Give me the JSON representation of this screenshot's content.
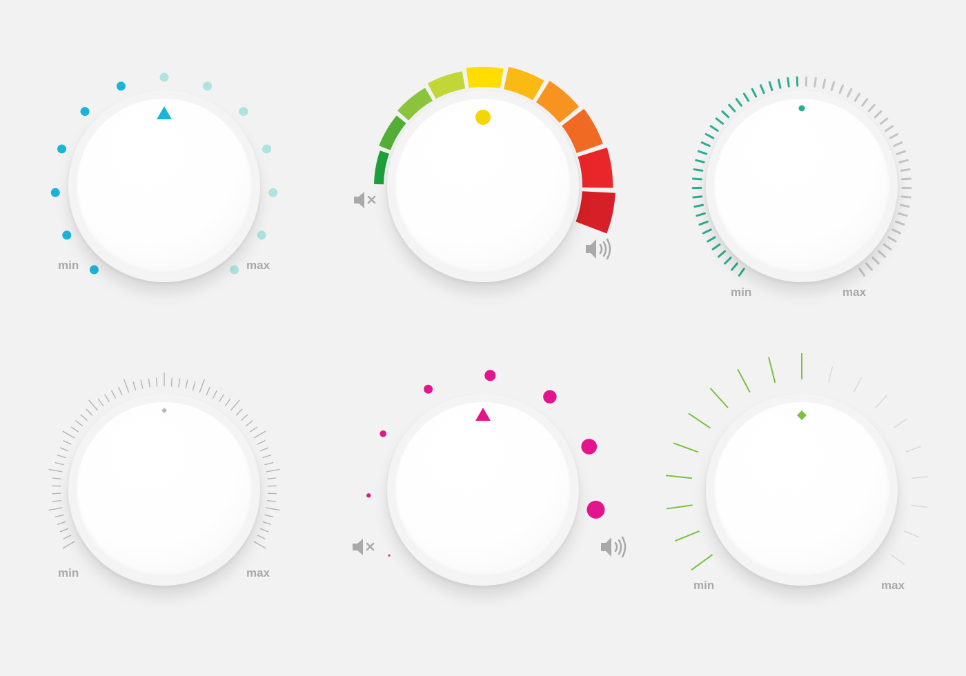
{
  "labels": {
    "min": "min",
    "max": "max"
  },
  "colors": {
    "background": "#f2f2f2",
    "cyan": "#19b5d8",
    "cyan_inactive": "#aee3e0",
    "teal": "#2aae90",
    "pink": "#e4158c",
    "green": "#79c13e",
    "gray_ticks": "#c4c4c4",
    "label": "#a9a9a9",
    "yellow_dot": "#f6d600",
    "segments": [
      "#1ea03a",
      "#53ae36",
      "#8ac33c",
      "#c2d638",
      "#ffdd00",
      "#fbb913",
      "#f7931e",
      "#f06a23",
      "#e9262a",
      "#d61f26"
    ]
  },
  "icons": {
    "mute": "speaker-mute-icon",
    "volume": "speaker-volume-icon"
  },
  "knobs": [
    {
      "id": "knob-cyan-dots",
      "level": 0.4,
      "indicator": "triangle"
    },
    {
      "id": "knob-rainbow-segments",
      "level": 1.0,
      "indicator": "dot"
    },
    {
      "id": "knob-teal-ticks",
      "level": 0.5,
      "indicator": "dot"
    },
    {
      "id": "knob-gray-ticks",
      "level": 0.5,
      "indicator": "diamond"
    },
    {
      "id": "knob-pink-dots",
      "level": 1.0,
      "indicator": "triangle"
    },
    {
      "id": "knob-green-lines",
      "level": 0.5,
      "indicator": "diamond"
    }
  ]
}
